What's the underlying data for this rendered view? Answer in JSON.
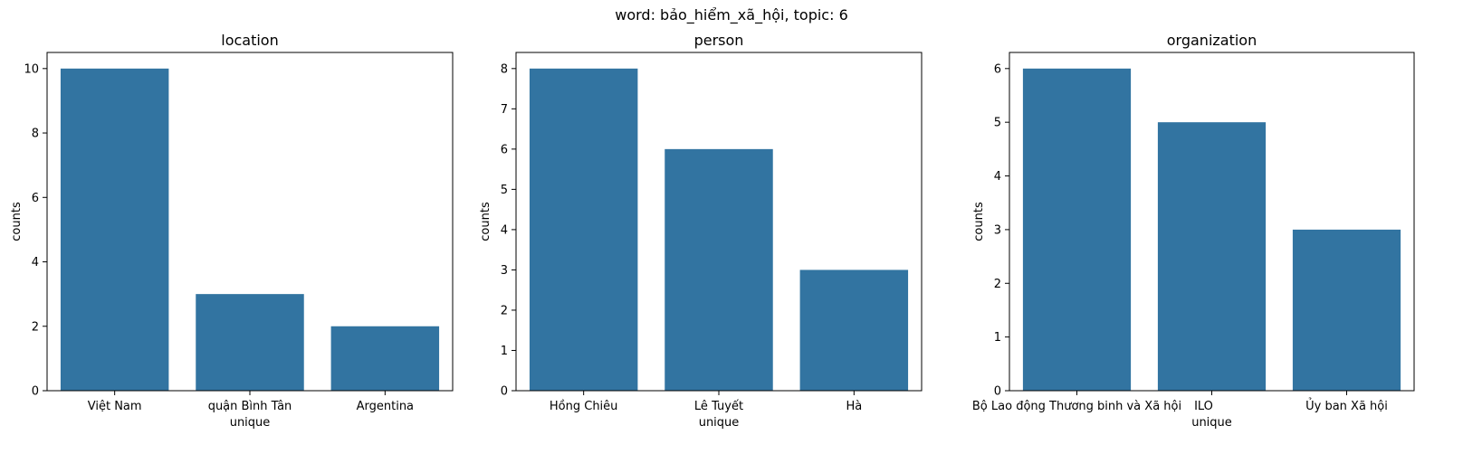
{
  "figure_title": "word: bảo_hiểm_xã_hội, topic: 6",
  "chart_data": [
    {
      "type": "bar",
      "title": "location",
      "xlabel": "unique",
      "ylabel": "counts",
      "categories": [
        "Việt Nam",
        "quận Bình Tân",
        "Argentina"
      ],
      "values": [
        10,
        3,
        2
      ],
      "ylim": [
        0,
        10.5
      ],
      "yticks": [
        0,
        2,
        4,
        6,
        8,
        10
      ],
      "color": "#3274a1",
      "grid": false
    },
    {
      "type": "bar",
      "title": "person",
      "xlabel": "unique",
      "ylabel": "counts",
      "categories": [
        "Hồng Chiêu",
        "Lê Tuyết",
        "Hà"
      ],
      "values": [
        8,
        6,
        3
      ],
      "ylim": [
        0,
        8.4
      ],
      "yticks": [
        0,
        1,
        2,
        3,
        4,
        5,
        6,
        7,
        8
      ],
      "color": "#3274a1",
      "grid": false
    },
    {
      "type": "bar",
      "title": "organization",
      "xlabel": "unique",
      "ylabel": "counts",
      "categories": [
        "Bộ Lao động Thương binh và Xã hội",
        "ILO",
        "Ủy ban Xã hội"
      ],
      "values": [
        6,
        5,
        3
      ],
      "ylim": [
        0,
        6.3
      ],
      "yticks": [
        0,
        1,
        2,
        3,
        4,
        5,
        6
      ],
      "color": "#3274a1",
      "grid": false
    }
  ]
}
